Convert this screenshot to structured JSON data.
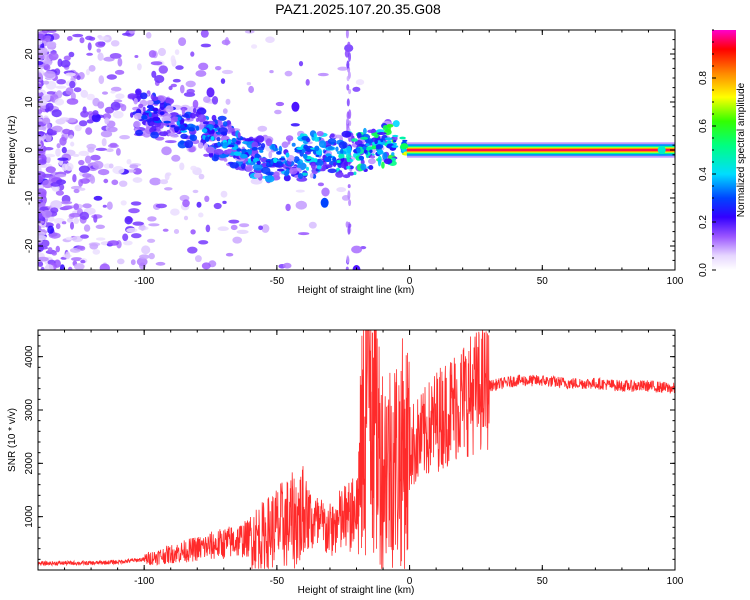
{
  "title": "PAZ1.2025.107.20.35.G08",
  "chart_data": [
    {
      "type": "heatmap",
      "xlabel": "Height of straight line (km)",
      "ylabel": "Frequency (Hz)",
      "xlim": [
        -140,
        100
      ],
      "ylim": [
        -25,
        25
      ],
      "xticks": [
        -100,
        -50,
        0,
        50,
        100
      ],
      "yticks": [
        20,
        10,
        0,
        -10,
        -20
      ],
      "colorbar": {
        "label": "Normalized spectral amplitude",
        "range": [
          0,
          1
        ],
        "ticks": [
          "0.0",
          "0.2",
          "0.4",
          "0.6",
          "0.8"
        ],
        "colormap": [
          "#ffffff",
          "#e5d2ff",
          "#7b2fff",
          "#0000ff",
          "#00ffff",
          "#00ff00",
          "#ffff00",
          "#ff8000",
          "#ff0000",
          "#ff00ff"
        ]
      },
      "signal_ridge": {
        "x": [
          -100,
          -90,
          -80,
          -70,
          -60,
          -50,
          -40,
          -30,
          -25,
          -20,
          -15,
          -10,
          -5,
          0,
          10,
          50,
          95,
          100
        ],
        "frequency": [
          8,
          6,
          4,
          2,
          -1,
          -2,
          -1,
          -1,
          -1,
          -1,
          0,
          1,
          2,
          0,
          0,
          0,
          0,
          0
        ],
        "amplitude": [
          0.2,
          0.25,
          0.3,
          0.3,
          0.35,
          0.35,
          0.4,
          0.4,
          0.45,
          0.5,
          0.55,
          0.55,
          0.6,
          0.9,
          0.98,
          0.98,
          0.98,
          0.98
        ]
      }
    },
    {
      "type": "line",
      "xlabel": "Height of straight line (km)",
      "ylabel": "SNR (10 * v/v)",
      "xlim": [
        -140,
        100
      ],
      "ylim": [
        0,
        4500
      ],
      "xticks": [
        -100,
        -50,
        0,
        50,
        100
      ],
      "yticks": [
        1000,
        2000,
        3000,
        4000
      ],
      "color": "#ff2a2a",
      "x": [
        -140,
        -130,
        -120,
        -110,
        -100,
        -95,
        -90,
        -85,
        -80,
        -75,
        -70,
        -65,
        -60,
        -55,
        -50,
        -45,
        -40,
        -35,
        -30,
        -25,
        -20,
        -18,
        -15,
        -12,
        -10,
        -5,
        0,
        5,
        10,
        15,
        20,
        25,
        30,
        35,
        40,
        50,
        60,
        70,
        80,
        90,
        100
      ],
      "values": [
        120,
        130,
        130,
        150,
        200,
        250,
        300,
        350,
        400,
        450,
        500,
        550,
        600,
        650,
        800,
        900,
        1000,
        800,
        700,
        900,
        1000,
        2200,
        4300,
        2500,
        2000,
        2100,
        2300,
        2500,
        2800,
        3000,
        3200,
        3350,
        3450,
        3500,
        3550,
        3550,
        3500,
        3500,
        3450,
        3450,
        3400
      ]
    }
  ]
}
